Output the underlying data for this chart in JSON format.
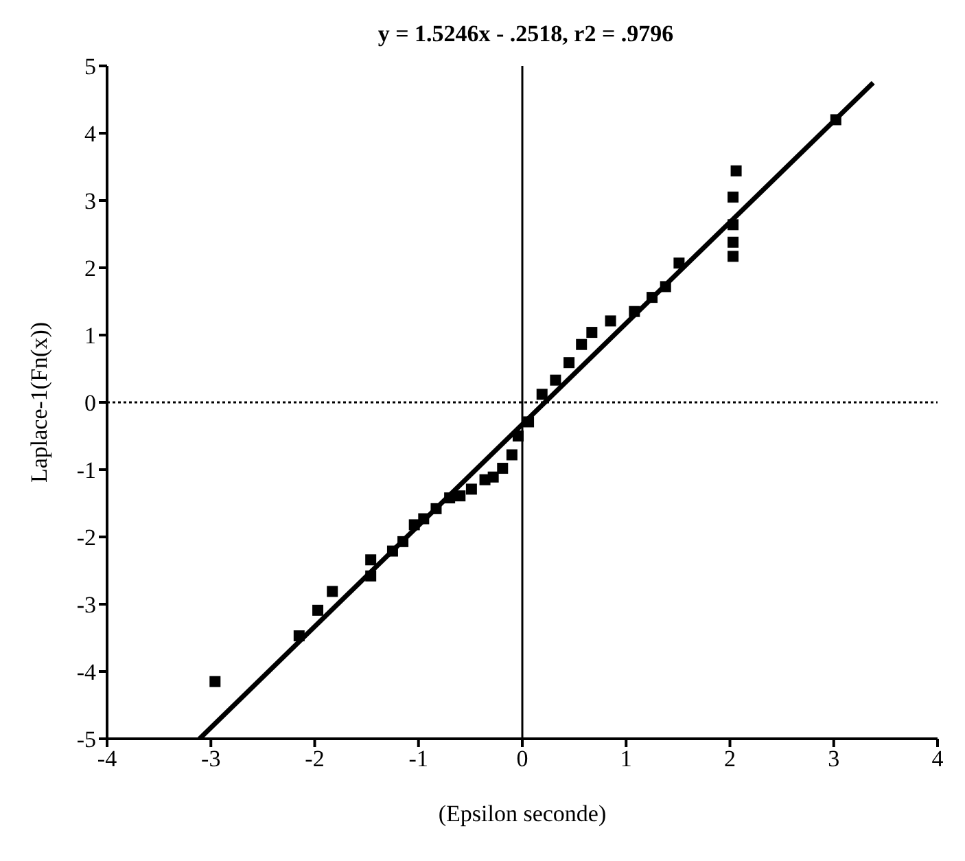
{
  "chart_data": {
    "type": "scatter",
    "title": "y = 1.5246x - .2518, r2 = .9796",
    "xlabel": "(Epsilon seconde)",
    "ylabel": "Laplace-1(Fn(x))",
    "xlim": [
      -4,
      4
    ],
    "xticks": [
      -4,
      -3,
      -2,
      -1,
      0,
      1,
      2,
      3,
      4
    ],
    "ylim": [
      -5,
      5
    ],
    "yticks": [
      -5,
      -4,
      -3,
      -2,
      -1,
      0,
      1,
      2,
      3,
      4,
      5
    ],
    "grid": false,
    "legend": false,
    "marker": "square",
    "series": [
      {
        "color": "#000000",
        "x": [
          -2.96,
          -2.15,
          -1.97,
          -1.83,
          -1.46,
          -1.46,
          -1.25,
          -1.15,
          -1.04,
          -0.95,
          -0.83,
          -0.7,
          -0.6,
          -0.49,
          -0.36,
          -0.28,
          -0.19,
          -0.1,
          -0.04,
          0.06,
          0.19,
          0.32,
          0.45,
          0.57,
          0.67,
          0.85,
          1.08,
          1.25,
          1.38,
          1.51,
          2.03,
          2.03,
          2.03,
          2.03,
          2.06,
          3.02
        ],
        "values": [
          -4.15,
          -3.47,
          -3.09,
          -2.81,
          -2.58,
          -2.34,
          -2.21,
          -2.07,
          -1.82,
          -1.73,
          -1.58,
          -1.42,
          -1.39,
          -1.29,
          -1.15,
          -1.11,
          -0.98,
          -0.78,
          -0.5,
          -0.29,
          0.12,
          0.33,
          0.59,
          0.86,
          1.04,
          1.21,
          1.35,
          1.56,
          1.72,
          2.07,
          2.17,
          2.38,
          2.64,
          3.05,
          3.44,
          4.2
        ]
      },
      {
        "type": "line",
        "color": "#000000",
        "marker": "none",
        "line_style": "solid",
        "x": [
          -3.11,
          3.38
        ],
        "values": [
          -5,
          4.75
        ]
      }
    ],
    "ref_lines": [
      {
        "axis": "x",
        "value": 0,
        "color": "#000000",
        "line_style": "solid"
      },
      {
        "axis": "y",
        "value": 0,
        "color": "#000000",
        "line_style": "dotted"
      }
    ]
  }
}
